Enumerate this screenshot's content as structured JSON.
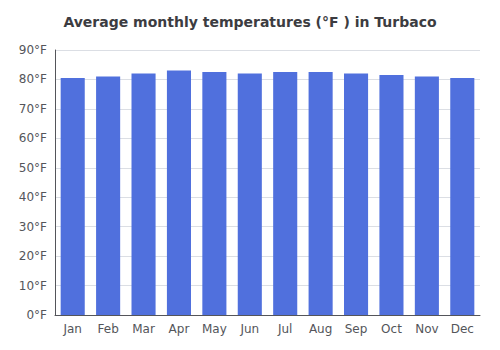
{
  "chart_data": {
    "type": "bar",
    "title": "Average monthly temperatures (°F ) in Turbaco",
    "categories": [
      "Jan",
      "Feb",
      "Mar",
      "Apr",
      "May",
      "Jun",
      "Jul",
      "Aug",
      "Sep",
      "Oct",
      "Nov",
      "Dec"
    ],
    "values": [
      80.5,
      81.0,
      82.0,
      83.0,
      82.5,
      82.0,
      82.5,
      82.5,
      82.0,
      81.5,
      81.0,
      80.5
    ],
    "ylim": [
      0,
      90
    ],
    "yticks": [
      {
        "value": 0,
        "label": "0°F"
      },
      {
        "value": 10,
        "label": "10°F"
      },
      {
        "value": 20,
        "label": "20°F"
      },
      {
        "value": 30,
        "label": "30°F"
      },
      {
        "value": 40,
        "label": "40°F"
      },
      {
        "value": 50,
        "label": "50°F"
      },
      {
        "value": 60,
        "label": "60°F"
      },
      {
        "value": 70,
        "label": "70°F"
      },
      {
        "value": 80,
        "label": "80°F"
      },
      {
        "value": 90,
        "label": "90°F"
      }
    ],
    "grid": true
  }
}
